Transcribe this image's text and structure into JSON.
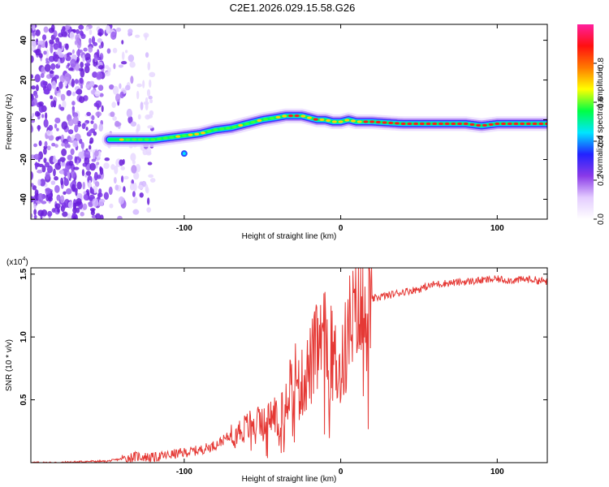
{
  "title": "C2E1.2026.029.15.58.G26",
  "colors": {
    "snr_line": "#e53935",
    "ridge_low": "#1e40ff",
    "ridge_high": "#ff1a1a",
    "noise": "#7a33e6"
  },
  "chart_data": [
    {
      "type": "heatmap",
      "name": "spectrogram",
      "xlabel": "Height of straight line (km)",
      "ylabel": "Frequency (Hz)",
      "xlim": [
        -198,
        132
      ],
      "ylim": [
        -50,
        48
      ],
      "xticks": [
        -100,
        0,
        100
      ],
      "yticks": [
        -40,
        -20,
        0,
        20,
        40
      ],
      "ridge": {
        "x": [
          -148,
          -140,
          -130,
          -120,
          -110,
          -100,
          -90,
          -80,
          -70,
          -60,
          -50,
          -42,
          -35,
          -30,
          -25,
          -20,
          -15,
          -10,
          -5,
          0,
          5,
          10,
          20,
          40,
          60,
          80,
          90,
          100,
          120,
          132
        ],
        "y": [
          -10,
          -10,
          -10,
          -10,
          -9,
          -8,
          -7,
          -5,
          -4,
          -2,
          0,
          1,
          2,
          2,
          2,
          1,
          0,
          0,
          -1,
          -1,
          0,
          -1,
          -1,
          -2,
          -2,
          -2,
          -3,
          -2,
          -2,
          -2
        ]
      },
      "colorbar": {
        "label": "Normalized spectral amplitude",
        "range": [
          0,
          1
        ],
        "ticks": [
          "0.0",
          "0.2",
          "0.4",
          "0.6",
          "0.8"
        ],
        "tick_values": [
          0.0,
          0.2,
          0.4,
          0.6,
          0.8
        ],
        "colormap": [
          "#ffffff",
          "#e4ccff",
          "#8a3ae8",
          "#2222ff",
          "#00e5ff",
          "#00ff44",
          "#ffff00",
          "#ff7a00",
          "#ff1010",
          "#ff1f9e"
        ]
      }
    },
    {
      "type": "line",
      "name": "snr",
      "xlabel": "Height of straight line (km)",
      "ylabel": "SNR (10 * v/v)",
      "exponent_label": "(x10",
      "exponent_sup": "4",
      "exponent_close": ")",
      "xlim": [
        -198,
        132
      ],
      "ylim": [
        0,
        1.55
      ],
      "xticks": [
        -100,
        0,
        100
      ],
      "yticks": [
        "0.5",
        "1.0",
        "1.5"
      ],
      "ytick_values": [
        0.5,
        1.0,
        1.5
      ],
      "x": [
        -198,
        -180,
        -160,
        -150,
        -140,
        -130,
        -120,
        -110,
        -100,
        -90,
        -80,
        -70,
        -60,
        -55,
        -50,
        -45,
        -40,
        -35,
        -30,
        -25,
        -20,
        -15,
        -10,
        -5,
        0,
        5,
        10,
        15,
        20,
        25,
        30,
        40,
        50,
        60,
        70,
        80,
        90,
        100,
        110,
        120,
        132
      ],
      "y": [
        0.0,
        0.0,
        0.01,
        0.01,
        0.03,
        0.05,
        0.04,
        0.06,
        0.08,
        0.1,
        0.14,
        0.22,
        0.28,
        0.32,
        0.3,
        0.36,
        0.4,
        0.55,
        0.7,
        0.62,
        0.75,
        0.9,
        0.95,
        0.85,
        0.7,
        1.05,
        1.15,
        1.2,
        1.3,
        1.32,
        1.33,
        1.36,
        1.38,
        1.42,
        1.43,
        1.44,
        1.45,
        1.46,
        1.45,
        1.46,
        1.44
      ]
    }
  ]
}
